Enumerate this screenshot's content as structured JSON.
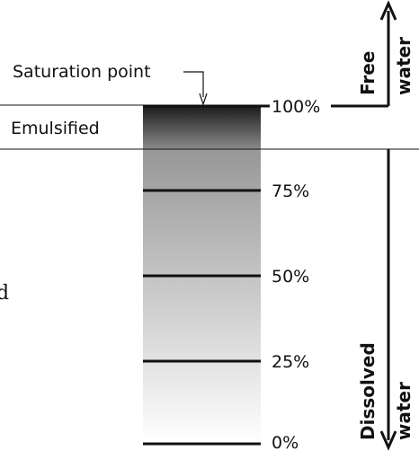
{
  "diagram": {
    "saturation_label": "Saturation point",
    "emulsified_label": "Emulsified",
    "free_water_line1": "Free",
    "free_water_line2": "water",
    "dissolved_water_line1": "Dissolved",
    "dissolved_water_line2": "water",
    "partial_edge_text": "d",
    "percent_labels": [
      "100%",
      "75%",
      "50%",
      "25%",
      "0%"
    ],
    "colors": {
      "column_top": "#1a1a1a",
      "column_mid": "#8f8f8f",
      "column_bottom": "#ffffff",
      "line": "#111111"
    }
  }
}
